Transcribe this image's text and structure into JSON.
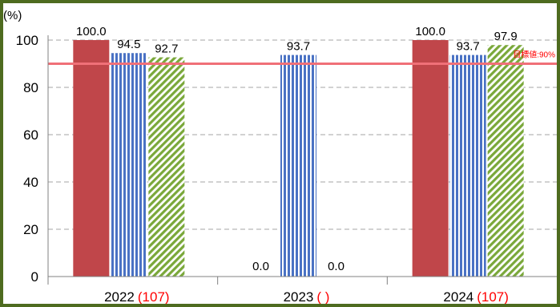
{
  "chart_data": {
    "type": "bar",
    "unit_label": "(%)",
    "ylim": [
      0,
      100
    ],
    "yticks": [
      0,
      20,
      40,
      60,
      80,
      100
    ],
    "grid": true,
    "categories": [
      {
        "year": "2022",
        "note": "(107)"
      },
      {
        "year": "2023",
        "note": "(  )"
      },
      {
        "year": "2024",
        "note": "(107)"
      }
    ],
    "series": [
      {
        "values": [
          100.0,
          0.0,
          100.0
        ],
        "labels": [
          "100.0",
          "0.0",
          "100.0"
        ],
        "color": "#c0464a",
        "pattern": "solid"
      },
      {
        "values": [
          94.5,
          93.7,
          93.7
        ],
        "labels": [
          "94.5",
          "93.7",
          "93.7"
        ],
        "color": "#4a72c4",
        "pattern": "vertical-stripes"
      },
      {
        "values": [
          92.7,
          0.0,
          97.9
        ],
        "labels": [
          "92.7",
          "0.0",
          "97.9"
        ],
        "color": "#7aa83a",
        "pattern": "diagonal-stripes"
      }
    ],
    "target": {
      "value": 90,
      "label": "目標値:90%",
      "color": "#f07078"
    },
    "note_color": "#ff0000"
  }
}
